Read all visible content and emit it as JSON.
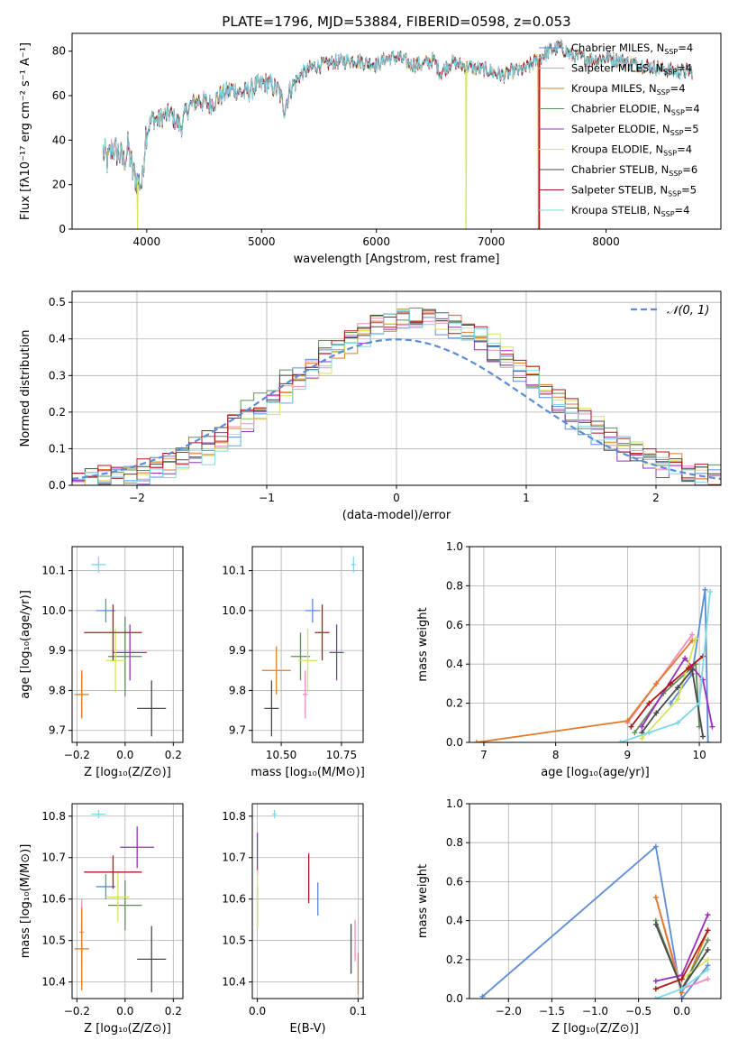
{
  "figure": {
    "title": "PLATE=1796, MJD=53884, FIBERID=0598, z=0.053"
  },
  "models": [
    {
      "name": "Chabrier MILES",
      "nssp": "4",
      "color": "#5b8bd9"
    },
    {
      "name": "Salpeter MILES",
      "nssp": "4",
      "color": "#f08cbf"
    },
    {
      "name": "Kroupa MILES",
      "nssp": "4",
      "color": "#e07a2a"
    },
    {
      "name": "Chabrier ELODIE",
      "nssp": "4",
      "color": "#5f8f5a"
    },
    {
      "name": "Salpeter ELODIE",
      "nssp": "5",
      "color": "#9a2fb8"
    },
    {
      "name": "Kroupa ELODIE",
      "nssp": "4",
      "color": "#d7e35a"
    },
    {
      "name": "Chabrier STELIB",
      "nssp": "6",
      "color": "#4a4a4a"
    },
    {
      "name": "Salpeter STELIB",
      "nssp": "5",
      "color": "#b0161b"
    },
    {
      "name": "Kroupa STELIB",
      "nssp": "4",
      "color": "#7fd8e6"
    }
  ],
  "chart_data": [
    {
      "id": "spectrum",
      "type": "line",
      "xlabel": "wavelength [Angstrom, rest frame]",
      "ylabel": "Flux [fλ10⁻¹⁷ erg cm⁻² s⁻¹ A⁻¹]",
      "xlim": [
        3350,
        9000
      ],
      "ylim": [
        0,
        88
      ],
      "xticks": [
        4000,
        5000,
        6000,
        7000,
        8000
      ],
      "yticks": [
        0,
        20,
        40,
        60,
        80
      ],
      "anchors": [
        [
          3620,
          35
        ],
        [
          3660,
          30
        ],
        [
          3700,
          37
        ],
        [
          3760,
          34
        ],
        [
          3800,
          30
        ],
        [
          3840,
          37
        ],
        [
          3880,
          25
        ],
        [
          3920,
          22
        ],
        [
          3960,
          20
        ],
        [
          3990,
          43
        ],
        [
          4050,
          50
        ],
        [
          4100,
          49
        ],
        [
          4200,
          52
        ],
        [
          4300,
          46
        ],
        [
          4350,
          54
        ],
        [
          4450,
          58
        ],
        [
          4550,
          56
        ],
        [
          4650,
          60
        ],
        [
          4750,
          63
        ],
        [
          4850,
          61
        ],
        [
          4950,
          64
        ],
        [
          5050,
          66
        ],
        [
          5150,
          62
        ],
        [
          5200,
          54
        ],
        [
          5250,
          63
        ],
        [
          5350,
          70
        ],
        [
          5450,
          73
        ],
        [
          5550,
          74
        ],
        [
          5650,
          75
        ],
        [
          5800,
          76
        ],
        [
          5900,
          75
        ],
        [
          6000,
          74
        ],
        [
          6100,
          77
        ],
        [
          6200,
          77
        ],
        [
          6300,
          74
        ],
        [
          6400,
          74
        ],
        [
          6500,
          76
        ],
        [
          6560,
          70
        ],
        [
          6650,
          75
        ],
        [
          6800,
          73
        ],
        [
          6900,
          72
        ],
        [
          7000,
          71
        ],
        [
          7100,
          69
        ],
        [
          7200,
          71
        ],
        [
          7300,
          72
        ],
        [
          7400,
          76
        ],
        [
          7500,
          80
        ],
        [
          7600,
          82
        ],
        [
          7700,
          78
        ],
        [
          7800,
          77
        ],
        [
          7900,
          76
        ],
        [
          8000,
          77
        ],
        [
          8100,
          76
        ],
        [
          8200,
          75
        ],
        [
          8300,
          74
        ],
        [
          8400,
          73
        ],
        [
          8500,
          72
        ],
        [
          8600,
          71
        ],
        [
          8750,
          71
        ]
      ],
      "dropouts": [
        {
          "model": 5,
          "x": 3920
        },
        {
          "model": 5,
          "x": 6780
        },
        {
          "model": 2,
          "x": 7410
        },
        {
          "model": 7,
          "x": 7420
        }
      ]
    },
    {
      "id": "residuals",
      "type": "area",
      "xlabel": "(data-model)/error",
      "ylabel": "Normed distribution",
      "xlim": [
        -2.5,
        2.5
      ],
      "ylim": [
        0,
        0.53
      ],
      "xticks": [
        -2,
        -1,
        0,
        1,
        2
      ],
      "yticks": [
        0.0,
        0.1,
        0.2,
        0.3,
        0.4,
        0.5
      ],
      "legend": "𝒩(0, 1)",
      "legend_loc": "top-right",
      "bin_width": 0.1,
      "gauss_sigma": 1.0
    },
    {
      "id": "age_vs_Z",
      "type": "scatter",
      "xlabel": "Z [log₁₀(Z/Z⊙)]",
      "ylabel": "age  [log₁₀(age/yr)]",
      "xlim": [
        -0.22,
        0.24
      ],
      "ylim": [
        9.67,
        10.16
      ],
      "xticks": [
        -0.2,
        0.0,
        0.2
      ],
      "yticks": [
        9.7,
        9.8,
        9.9,
        10.0,
        10.1
      ],
      "points": [
        {
          "m": 0,
          "x": -0.08,
          "y": 10.0,
          "ex": 0.04,
          "ey": 0.03
        },
        {
          "m": 1,
          "x": -0.18,
          "y": 9.79,
          "ex": 0.01,
          "ey": 0.06
        },
        {
          "m": 2,
          "x": -0.18,
          "y": 9.79,
          "ex": 0.03,
          "ey": 0.06
        },
        {
          "m": 3,
          "x": 0.0,
          "y": 9.885,
          "ex": 0.07,
          "ey": 0.1
        },
        {
          "m": 4,
          "x": 0.02,
          "y": 9.895,
          "ex": 0.07,
          "ey": 0.07
        },
        {
          "m": 5,
          "x": -0.04,
          "y": 9.875,
          "ex": 0.04,
          "ey": 0.08
        },
        {
          "m": 6,
          "x": 0.11,
          "y": 9.755,
          "ex": 0.06,
          "ey": 0.07
        },
        {
          "m": 7,
          "x": -0.05,
          "y": 9.945,
          "ex": 0.12,
          "ey": 0.07
        },
        {
          "m": 8,
          "x": -0.11,
          "y": 10.115,
          "ex": 0.03,
          "ey": 0.02
        }
      ]
    },
    {
      "id": "age_vs_mass",
      "type": "scatter",
      "xlabel": "mass [log₁₀(M/M⊙)]",
      "ylabel": "",
      "xlim": [
        10.38,
        10.84
      ],
      "ylim": [
        9.67,
        10.16
      ],
      "xticks": [
        10.5,
        10.75
      ],
      "yticks": [
        9.7,
        9.8,
        9.9,
        10.0,
        10.1
      ],
      "points": [
        {
          "m": 0,
          "x": 10.63,
          "y": 10.0,
          "ex": 0.03,
          "ey": 0.03
        },
        {
          "m": 1,
          "x": 10.6,
          "y": 9.79,
          "ex": 0.01,
          "ey": 0.06
        },
        {
          "m": 2,
          "x": 10.48,
          "y": 9.85,
          "ex": 0.06,
          "ey": 0.06
        },
        {
          "m": 3,
          "x": 10.58,
          "y": 9.885,
          "ex": 0.04,
          "ey": 0.06
        },
        {
          "m": 4,
          "x": 10.73,
          "y": 9.895,
          "ex": 0.03,
          "ey": 0.07
        },
        {
          "m": 5,
          "x": 10.61,
          "y": 9.875,
          "ex": 0.04,
          "ey": 0.08
        },
        {
          "m": 6,
          "x": 10.46,
          "y": 9.755,
          "ex": 0.03,
          "ey": 0.07
        },
        {
          "m": 7,
          "x": 10.67,
          "y": 9.945,
          "ex": 0.03,
          "ey": 0.07
        },
        {
          "m": 8,
          "x": 10.8,
          "y": 10.115,
          "ex": 0.01,
          "ey": 0.02
        }
      ]
    },
    {
      "id": "weights_vs_age",
      "type": "line",
      "xlabel": "age  [log₁₀(age/yr)]",
      "ylabel": "mass weight",
      "xlim": [
        6.8,
        10.3
      ],
      "ylim": [
        0,
        1.0
      ],
      "xticks": [
        7,
        8,
        9,
        10
      ],
      "yticks": [
        0.0,
        0.2,
        0.4,
        0.6,
        0.8,
        1.0
      ],
      "series": [
        {
          "m": 0,
          "x": [
            9.6,
            9.9,
            10.08,
            10.12
          ],
          "y": [
            0.2,
            0.35,
            0.78,
            0.0
          ]
        },
        {
          "m": 1,
          "x": [
            9.0,
            9.4,
            9.9
          ],
          "y": [
            0.1,
            0.3,
            0.55
          ]
        },
        {
          "m": 2,
          "x": [
            6.9,
            9.0,
            9.4,
            9.9
          ],
          "y": [
            0.0,
            0.11,
            0.3,
            0.52
          ]
        },
        {
          "m": 3,
          "x": [
            9.1,
            9.5,
            9.95,
            10.0
          ],
          "y": [
            0.05,
            0.25,
            0.4,
            0.08
          ]
        },
        {
          "m": 4,
          "x": [
            9.2,
            9.8,
            10.05,
            10.18
          ],
          "y": [
            0.08,
            0.43,
            0.32,
            0.08
          ]
        },
        {
          "m": 5,
          "x": [
            9.2,
            9.7,
            9.95
          ],
          "y": [
            0.02,
            0.22,
            0.53
          ]
        },
        {
          "m": 6,
          "x": [
            9.2,
            9.4,
            9.7,
            9.9,
            10.05
          ],
          "y": [
            0.05,
            0.15,
            0.28,
            0.37,
            0.03
          ]
        },
        {
          "m": 7,
          "x": [
            9.05,
            9.3,
            9.6,
            9.85,
            10.05
          ],
          "y": [
            0.08,
            0.2,
            0.3,
            0.38,
            0.44
          ]
        },
        {
          "m": 8,
          "x": [
            8.9,
            9.3,
            9.7,
            10.0,
            10.15
          ],
          "y": [
            0.0,
            0.05,
            0.1,
            0.2,
            0.77
          ]
        }
      ]
    },
    {
      "id": "mass_vs_Z",
      "type": "scatter",
      "xlabel": "Z [log₁₀(Z/Z⊙)]",
      "ylabel": "mass [log₁₀(M/M⊙)]",
      "xlim": [
        -0.22,
        0.24
      ],
      "ylim": [
        10.36,
        10.83
      ],
      "xticks": [
        -0.2,
        0.0,
        0.2
      ],
      "yticks": [
        10.4,
        10.5,
        10.6,
        10.7,
        10.8
      ],
      "points": [
        {
          "m": 0,
          "x": -0.08,
          "y": 10.63,
          "ex": 0.04,
          "ey": 0.03
        },
        {
          "m": 1,
          "x": -0.18,
          "y": 10.52,
          "ex": 0.01,
          "ey": 0.08
        },
        {
          "m": 2,
          "x": -0.18,
          "y": 10.48,
          "ex": 0.03,
          "ey": 0.1
        },
        {
          "m": 3,
          "x": 0.0,
          "y": 10.585,
          "ex": 0.07,
          "ey": 0.06
        },
        {
          "m": 4,
          "x": 0.05,
          "y": 10.725,
          "ex": 0.07,
          "ey": 0.05
        },
        {
          "m": 5,
          "x": -0.03,
          "y": 10.605,
          "ex": 0.05,
          "ey": 0.06
        },
        {
          "m": 6,
          "x": 0.11,
          "y": 10.455,
          "ex": 0.06,
          "ey": 0.08
        },
        {
          "m": 7,
          "x": -0.05,
          "y": 10.665,
          "ex": 0.12,
          "ey": 0.04
        },
        {
          "m": 8,
          "x": -0.11,
          "y": 10.805,
          "ex": 0.03,
          "ey": 0.01
        }
      ]
    },
    {
      "id": "mass_vs_EBV",
      "type": "scatter",
      "xlabel": "E(B-V)",
      "ylabel": "",
      "xlim": [
        -0.005,
        0.105
      ],
      "ylim": [
        10.36,
        10.83
      ],
      "xticks": [
        0.0,
        0.1
      ],
      "yticks": [
        10.4,
        10.5,
        10.6,
        10.7,
        10.8
      ],
      "points": [
        {
          "m": 0,
          "x": 0.06,
          "y": 10.6,
          "ex": 0.0,
          "ey": 0.04
        },
        {
          "m": 1,
          "x": 0.097,
          "y": 10.5,
          "ex": 0.0,
          "ey": 0.05
        },
        {
          "m": 2,
          "x": 0.1,
          "y": 10.42,
          "ex": 0.0,
          "ey": 0.05
        },
        {
          "m": 3,
          "x": 0.0,
          "y": 10.58,
          "ex": 0.0,
          "ey": 0.05
        },
        {
          "m": 4,
          "x": 0.0,
          "y": 10.71,
          "ex": 0.0,
          "ey": 0.05
        },
        {
          "m": 5,
          "x": 0.0,
          "y": 10.6,
          "ex": 0.0,
          "ey": 0.07
        },
        {
          "m": 6,
          "x": 0.093,
          "y": 10.48,
          "ex": 0.0,
          "ey": 0.06
        },
        {
          "m": 7,
          "x": 0.051,
          "y": 10.65,
          "ex": 0.0,
          "ey": 0.06
        },
        {
          "m": 8,
          "x": 0.017,
          "y": 10.805,
          "ex": 0.002,
          "ey": 0.01
        }
      ]
    },
    {
      "id": "weights_vs_Z",
      "type": "line",
      "xlabel": "Z [log₁₀(Z/Z⊙)]",
      "ylabel": "mass weight",
      "xlim": [
        -2.45,
        0.45
      ],
      "ylim": [
        0,
        1.0
      ],
      "xticks": [
        -2.0,
        -1.5,
        -1.0,
        -0.5,
        0.0
      ],
      "yticks": [
        0.0,
        0.2,
        0.4,
        0.6,
        0.8,
        1.0
      ],
      "series": [
        {
          "m": 0,
          "x": [
            -2.3,
            -0.3,
            0.0,
            0.3
          ],
          "y": [
            0.01,
            0.78,
            0.0,
            0.17
          ]
        },
        {
          "m": 1,
          "x": [
            -0.3,
            0.0,
            0.3
          ],
          "y": [
            0.52,
            0.05,
            0.1
          ]
        },
        {
          "m": 2,
          "x": [
            -0.3,
            0.0,
            0.3
          ],
          "y": [
            0.52,
            0.03,
            0.35
          ]
        },
        {
          "m": 3,
          "x": [
            -0.3,
            0.0,
            0.3
          ],
          "y": [
            0.4,
            0.05,
            0.3
          ]
        },
        {
          "m": 4,
          "x": [
            -0.3,
            0.0,
            0.3
          ],
          "y": [
            0.09,
            0.12,
            0.43
          ]
        },
        {
          "m": 5,
          "x": [
            -0.3,
            0.0,
            0.3
          ],
          "y": [
            0.05,
            0.1,
            0.2
          ]
        },
        {
          "m": 6,
          "x": [
            -0.3,
            0.0,
            0.3
          ],
          "y": [
            0.38,
            0.05,
            0.25
          ]
        },
        {
          "m": 7,
          "x": [
            -0.3,
            0.0,
            0.3
          ],
          "y": [
            0.05,
            0.1,
            0.35
          ]
        },
        {
          "m": 8,
          "x": [
            -0.3,
            0.0,
            0.3
          ],
          "y": [
            0.0,
            0.05,
            0.15
          ]
        }
      ]
    }
  ]
}
